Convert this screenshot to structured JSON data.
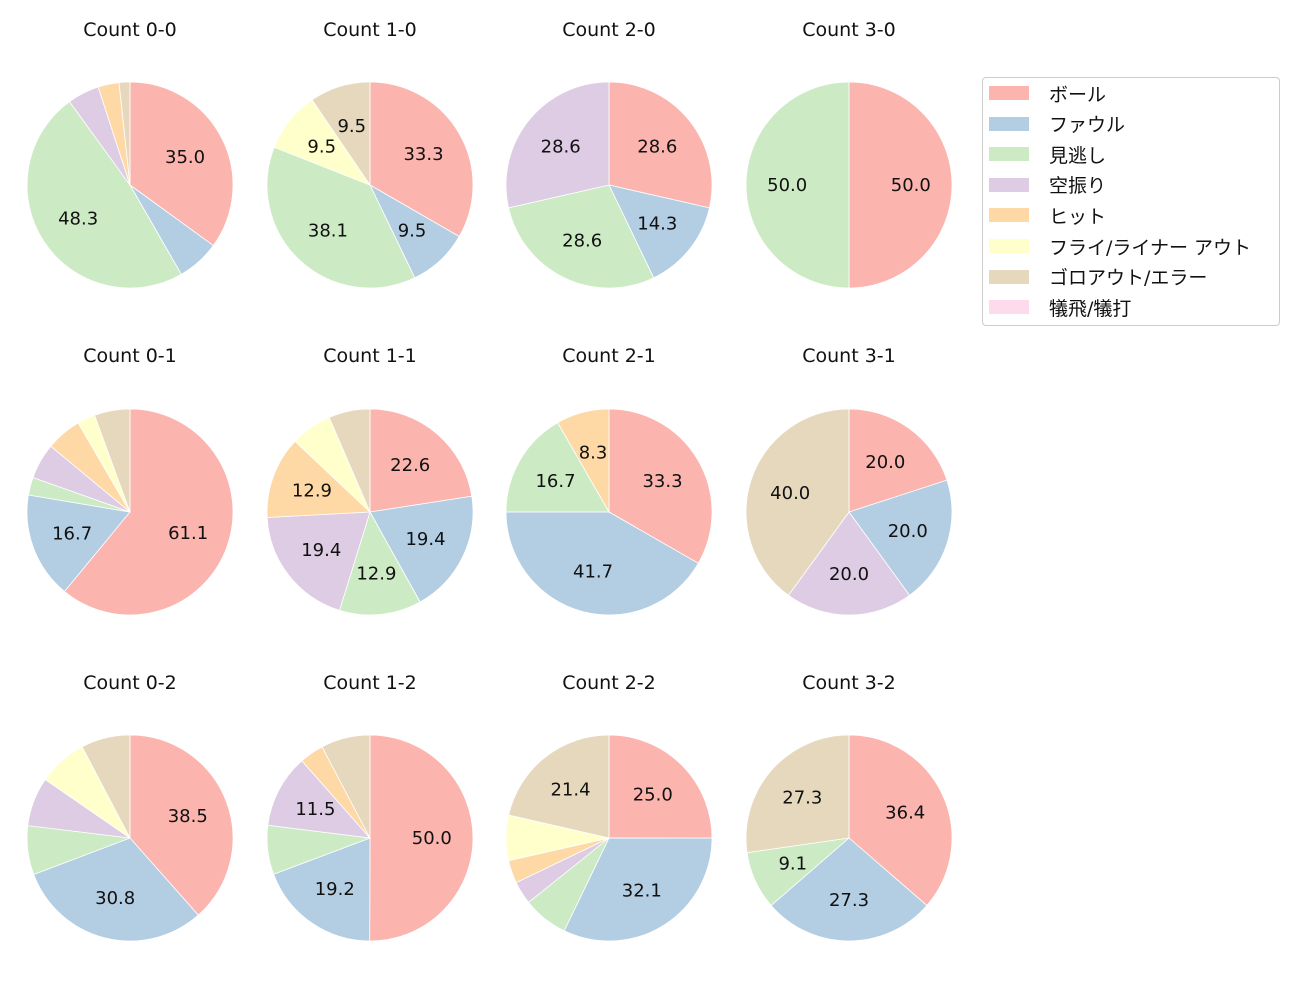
{
  "chart_data": {
    "type": "pie",
    "legend": {
      "placement": "right",
      "entries": [
        "ボール",
        "ファウル",
        "見逃し",
        "空振り",
        "ヒット",
        "フライ/ライナー アウト",
        "ゴロアウト/エラー",
        "犠飛/犠打"
      ]
    },
    "colors": [
      "#fbb4ae",
      "#b3cde3",
      "#ccebc5",
      "#decbe4",
      "#fed9a6",
      "#ffffcc",
      "#e5d8bd",
      "#fddaec"
    ],
    "charts": [
      {
        "title": "Count 0-0",
        "values": [
          35.0,
          6.7,
          48.3,
          5.0,
          3.3,
          0,
          1.7,
          0
        ]
      },
      {
        "title": "Count 1-0",
        "values": [
          33.3,
          9.5,
          38.1,
          0,
          0,
          9.5,
          9.5,
          0
        ]
      },
      {
        "title": "Count 2-0",
        "values": [
          28.6,
          14.3,
          28.6,
          28.6,
          0,
          0,
          0,
          0
        ]
      },
      {
        "title": "Count 3-0",
        "values": [
          50.0,
          0,
          50.0,
          0,
          0,
          0,
          0,
          0
        ]
      },
      {
        "title": "Count 0-1",
        "values": [
          61.1,
          16.7,
          2.8,
          5.6,
          5.6,
          2.8,
          5.6,
          0
        ]
      },
      {
        "title": "Count 1-1",
        "values": [
          22.6,
          19.4,
          12.9,
          19.4,
          12.9,
          6.5,
          6.5,
          0
        ]
      },
      {
        "title": "Count 2-1",
        "values": [
          33.3,
          41.7,
          16.7,
          0,
          8.3,
          0,
          0,
          0
        ]
      },
      {
        "title": "Count 3-1",
        "values": [
          20.0,
          20.0,
          0,
          20.0,
          0,
          0,
          40.0,
          0
        ]
      },
      {
        "title": "Count 0-2",
        "values": [
          38.5,
          30.8,
          7.7,
          7.7,
          0,
          7.7,
          7.7,
          0
        ]
      },
      {
        "title": "Count 1-2",
        "values": [
          50.0,
          19.2,
          7.7,
          11.5,
          3.8,
          0,
          7.7,
          0
        ]
      },
      {
        "title": "Count 2-2",
        "values": [
          25.0,
          32.1,
          7.1,
          3.6,
          3.6,
          7.1,
          21.4,
          0
        ]
      },
      {
        "title": "Count 3-2",
        "values": [
          36.4,
          27.3,
          9.1,
          0,
          0,
          0,
          27.3,
          0
        ]
      }
    ]
  }
}
